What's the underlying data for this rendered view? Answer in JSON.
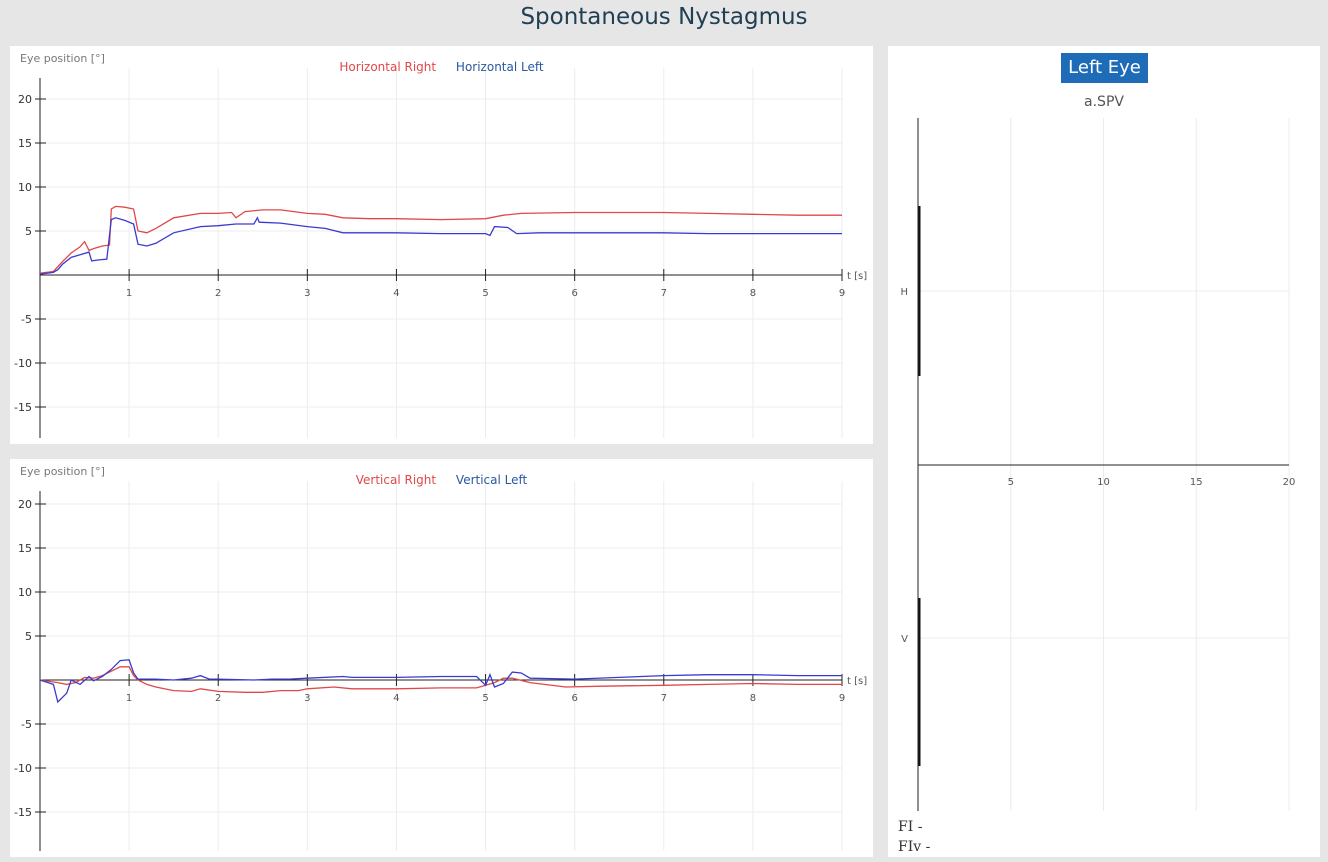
{
  "page": {
    "title": "Spontaneous Nystagmus"
  },
  "colors": {
    "right": "#e04848",
    "left": "#3a3ad0",
    "legend_left": "#2a58a0",
    "accent": "#1e6bb8"
  },
  "chart_data": [
    {
      "type": "line",
      "id": "horizontal",
      "ylabel": "Eye position [°]",
      "xlabel": "t [s]",
      "xlim": [
        0,
        9
      ],
      "ylim": [
        -18,
        20
      ],
      "xticks": [
        1,
        2,
        3,
        4,
        5,
        6,
        7,
        8,
        9
      ],
      "yticks": [
        20,
        15,
        10,
        5,
        -5,
        -10,
        -15
      ],
      "series": [
        {
          "name": "Horizontal Right",
          "color": "#e04848",
          "points": [
            [
              0,
              0.2
            ],
            [
              0.15,
              0.4
            ],
            [
              0.25,
              1.5
            ],
            [
              0.35,
              2.5
            ],
            [
              0.45,
              3.2
            ],
            [
              0.5,
              3.8
            ],
            [
              0.55,
              2.8
            ],
            [
              0.6,
              3.0
            ],
            [
              0.7,
              3.3
            ],
            [
              0.78,
              3.4
            ],
            [
              0.8,
              7.5
            ],
            [
              0.85,
              7.8
            ],
            [
              0.95,
              7.7
            ],
            [
              1.05,
              7.5
            ],
            [
              1.1,
              5.0
            ],
            [
              1.2,
              4.8
            ],
            [
              1.3,
              5.3
            ],
            [
              1.5,
              6.5
            ],
            [
              1.8,
              7.0
            ],
            [
              2.0,
              7.0
            ],
            [
              2.15,
              7.1
            ],
            [
              2.2,
              6.5
            ],
            [
              2.3,
              7.2
            ],
            [
              2.5,
              7.4
            ],
            [
              2.7,
              7.4
            ],
            [
              3.0,
              7.0
            ],
            [
              3.2,
              6.9
            ],
            [
              3.4,
              6.5
            ],
            [
              3.7,
              6.4
            ],
            [
              4.0,
              6.4
            ],
            [
              4.5,
              6.3
            ],
            [
              5.0,
              6.4
            ],
            [
              5.2,
              6.8
            ],
            [
              5.4,
              7.0
            ],
            [
              6.0,
              7.1
            ],
            [
              6.5,
              7.1
            ],
            [
              7.0,
              7.1
            ],
            [
              7.5,
              7.0
            ],
            [
              8.0,
              6.9
            ],
            [
              8.5,
              6.8
            ],
            [
              9.0,
              6.8
            ]
          ]
        },
        {
          "name": "Horizontal Left",
          "color": "#3a3ad0",
          "points": [
            [
              0,
              0.1
            ],
            [
              0.15,
              0.3
            ],
            [
              0.2,
              0.6
            ],
            [
              0.25,
              1.2
            ],
            [
              0.35,
              2.0
            ],
            [
              0.45,
              2.3
            ],
            [
              0.55,
              2.6
            ],
            [
              0.58,
              1.6
            ],
            [
              0.65,
              1.7
            ],
            [
              0.75,
              1.8
            ],
            [
              0.8,
              6.3
            ],
            [
              0.85,
              6.5
            ],
            [
              0.95,
              6.2
            ],
            [
              1.05,
              5.8
            ],
            [
              1.1,
              3.5
            ],
            [
              1.2,
              3.3
            ],
            [
              1.3,
              3.6
            ],
            [
              1.5,
              4.8
            ],
            [
              1.8,
              5.5
            ],
            [
              2.0,
              5.6
            ],
            [
              2.2,
              5.8
            ],
            [
              2.4,
              5.8
            ],
            [
              2.44,
              6.5
            ],
            [
              2.46,
              6.0
            ],
            [
              2.7,
              5.9
            ],
            [
              3.0,
              5.5
            ],
            [
              3.2,
              5.3
            ],
            [
              3.4,
              4.8
            ],
            [
              3.7,
              4.8
            ],
            [
              4.0,
              4.8
            ],
            [
              4.5,
              4.7
            ],
            [
              5.0,
              4.7
            ],
            [
              5.05,
              4.5
            ],
            [
              5.1,
              5.5
            ],
            [
              5.25,
              5.4
            ],
            [
              5.35,
              4.7
            ],
            [
              5.6,
              4.8
            ],
            [
              6.0,
              4.8
            ],
            [
              6.5,
              4.8
            ],
            [
              7.0,
              4.8
            ],
            [
              7.5,
              4.7
            ],
            [
              8.0,
              4.7
            ],
            [
              8.5,
              4.7
            ],
            [
              9.0,
              4.7
            ]
          ]
        }
      ]
    },
    {
      "type": "line",
      "id": "vertical",
      "ylabel": "Eye position [°]",
      "xlabel": "t [s]",
      "xlim": [
        0,
        9
      ],
      "ylim": [
        -19,
        20
      ],
      "xticks": [
        1,
        2,
        3,
        4,
        5,
        6,
        7,
        8,
        9
      ],
      "yticks": [
        20,
        15,
        10,
        5,
        -5,
        -10,
        -15
      ],
      "series": [
        {
          "name": "Vertical Right",
          "color": "#e04848",
          "points": [
            [
              0,
              0
            ],
            [
              0.2,
              -0.3
            ],
            [
              0.3,
              -0.5
            ],
            [
              0.4,
              -0.3
            ],
            [
              0.5,
              0.3
            ],
            [
              0.6,
              0.2
            ],
            [
              0.7,
              0.5
            ],
            [
              0.8,
              1.0
            ],
            [
              0.9,
              1.5
            ],
            [
              1.0,
              1.5
            ],
            [
              1.05,
              0.5
            ],
            [
              1.1,
              0
            ],
            [
              1.2,
              -0.5
            ],
            [
              1.3,
              -0.8
            ],
            [
              1.5,
              -1.2
            ],
            [
              1.7,
              -1.3
            ],
            [
              1.8,
              -1.0
            ],
            [
              2.0,
              -1.3
            ],
            [
              2.3,
              -1.4
            ],
            [
              2.5,
              -1.4
            ],
            [
              2.7,
              -1.2
            ],
            [
              2.9,
              -1.2
            ],
            [
              3.0,
              -1.0
            ],
            [
              3.3,
              -0.8
            ],
            [
              3.5,
              -1.0
            ],
            [
              4.0,
              -1.0
            ],
            [
              4.5,
              -0.9
            ],
            [
              4.9,
              -0.9
            ],
            [
              5.0,
              -0.6
            ],
            [
              5.1,
              -0.3
            ],
            [
              5.2,
              0.2
            ],
            [
              5.3,
              0.2
            ],
            [
              5.5,
              -0.3
            ],
            [
              5.9,
              -0.8
            ],
            [
              6.3,
              -0.7
            ],
            [
              7.0,
              -0.6
            ],
            [
              7.5,
              -0.5
            ],
            [
              8.0,
              -0.4
            ],
            [
              8.5,
              -0.5
            ],
            [
              9.0,
              -0.5
            ]
          ]
        },
        {
          "name": "Vertical Left",
          "color": "#3a3ad0",
          "points": [
            [
              0,
              0
            ],
            [
              0.15,
              -0.5
            ],
            [
              0.2,
              -2.5
            ],
            [
              0.3,
              -1.5
            ],
            [
              0.35,
              0
            ],
            [
              0.45,
              -0.5
            ],
            [
              0.55,
              0.4
            ],
            [
              0.6,
              -0.1
            ],
            [
              0.7,
              0.4
            ],
            [
              0.8,
              1.2
            ],
            [
              0.9,
              2.2
            ],
            [
              1.0,
              2.3
            ],
            [
              1.05,
              0.8
            ],
            [
              1.1,
              0.1
            ],
            [
              1.3,
              0.1
            ],
            [
              1.5,
              0.0
            ],
            [
              1.7,
              0.2
            ],
            [
              1.8,
              0.5
            ],
            [
              1.9,
              0.1
            ],
            [
              2.0,
              0.1
            ],
            [
              2.4,
              0.0
            ],
            [
              2.6,
              0.1
            ],
            [
              2.8,
              0.1
            ],
            [
              3.0,
              0.2
            ],
            [
              3.4,
              0.4
            ],
            [
              3.5,
              0.3
            ],
            [
              4.0,
              0.3
            ],
            [
              4.5,
              0.4
            ],
            [
              4.9,
              0.4
            ],
            [
              5.0,
              -0.6
            ],
            [
              5.05,
              0.6
            ],
            [
              5.1,
              -0.8
            ],
            [
              5.2,
              -0.4
            ],
            [
              5.3,
              0.9
            ],
            [
              5.4,
              0.8
            ],
            [
              5.5,
              0.2
            ],
            [
              6.0,
              0.1
            ],
            [
              6.5,
              0.3
            ],
            [
              7.0,
              0.5
            ],
            [
              7.5,
              0.6
            ],
            [
              8.0,
              0.6
            ],
            [
              8.5,
              0.5
            ],
            [
              9.0,
              0.5
            ]
          ]
        }
      ]
    },
    {
      "type": "line",
      "id": "spv",
      "title": "a.SPV",
      "xlim": [
        0,
        20
      ],
      "xticks": [
        5,
        10,
        15,
        20
      ],
      "categories": [
        "H",
        "V"
      ],
      "series": []
    }
  ],
  "spv": {
    "eye_button": "Left Eye",
    "subtitle": "a.SPV",
    "fi_label": "FI -",
    "fiv_label": "FIv -"
  }
}
